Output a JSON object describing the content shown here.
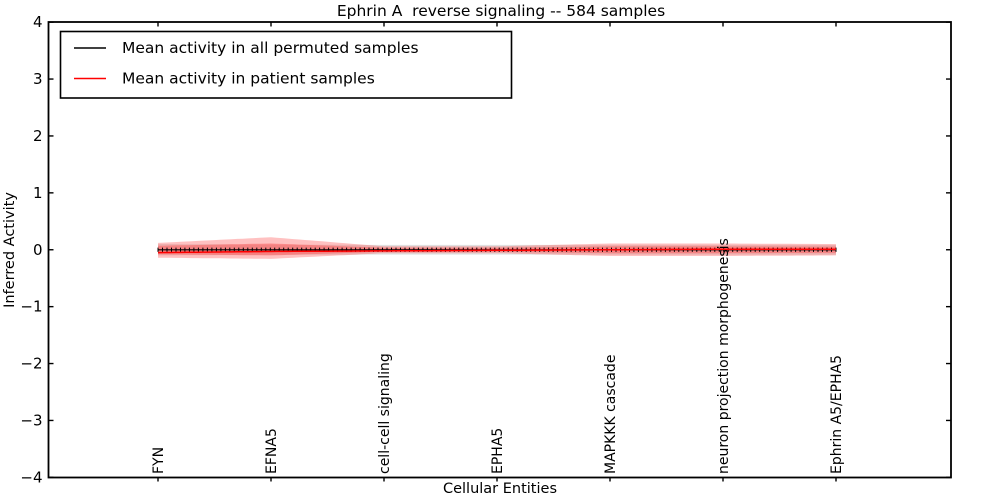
{
  "chart_data": {
    "type": "line",
    "title": "Ephrin A  reverse signaling -- 584 samples",
    "xlabel": "Cellular Entities",
    "ylabel": "Inferred Activity",
    "ylim": [
      -4,
      4
    ],
    "grid": false,
    "legend_position": "upper left",
    "ytick_values": [
      4,
      3,
      2,
      1,
      0,
      -1,
      -2,
      -3,
      -4
    ],
    "ytick_labels": [
      "4",
      "3",
      "2",
      "1",
      "0",
      "−1",
      "−2",
      "−3",
      "−4"
    ],
    "categories": [
      "FYN",
      "EFNA5",
      "cell-cell signaling",
      "EPHA5",
      "MAPKKK cascade",
      "neuron projection morphogenesis",
      "Ephrin A5/EPHA5"
    ],
    "series": [
      {
        "name": "Mean activity in all permuted samples",
        "color": "#000000",
        "marker": "|",
        "values": [
          0,
          0,
          0,
          0,
          0,
          0,
          0
        ],
        "band_upper": [
          0.1,
          0.09,
          0.085,
          0.085,
          0.085,
          0.085,
          0.085
        ],
        "band_lower": [
          -0.1,
          -0.09,
          -0.085,
          -0.085,
          -0.085,
          -0.085,
          -0.085
        ],
        "band_color": "#999999",
        "band_opacity": 0.3
      },
      {
        "name": "Mean activity in patient samples",
        "color": "#ff0000",
        "marker": "none",
        "values": [
          -0.05,
          -0.03,
          -0.02,
          -0.01,
          0.0,
          0.01,
          0.01
        ],
        "band_outer_upper": [
          0.12,
          0.22,
          0.06,
          0.06,
          0.11,
          0.11,
          0.1
        ],
        "band_outer_lower": [
          -0.14,
          -0.16,
          -0.06,
          -0.06,
          -0.11,
          -0.11,
          -0.1
        ],
        "band_inner_upper": [
          0.07,
          0.11,
          0.035,
          0.035,
          0.06,
          0.06,
          0.055
        ],
        "band_inner_lower": [
          -0.08,
          -0.1,
          -0.035,
          -0.035,
          -0.06,
          -0.06,
          -0.055
        ],
        "band_color": "#ff4d4d",
        "band_opacity": 0.35
      }
    ]
  }
}
